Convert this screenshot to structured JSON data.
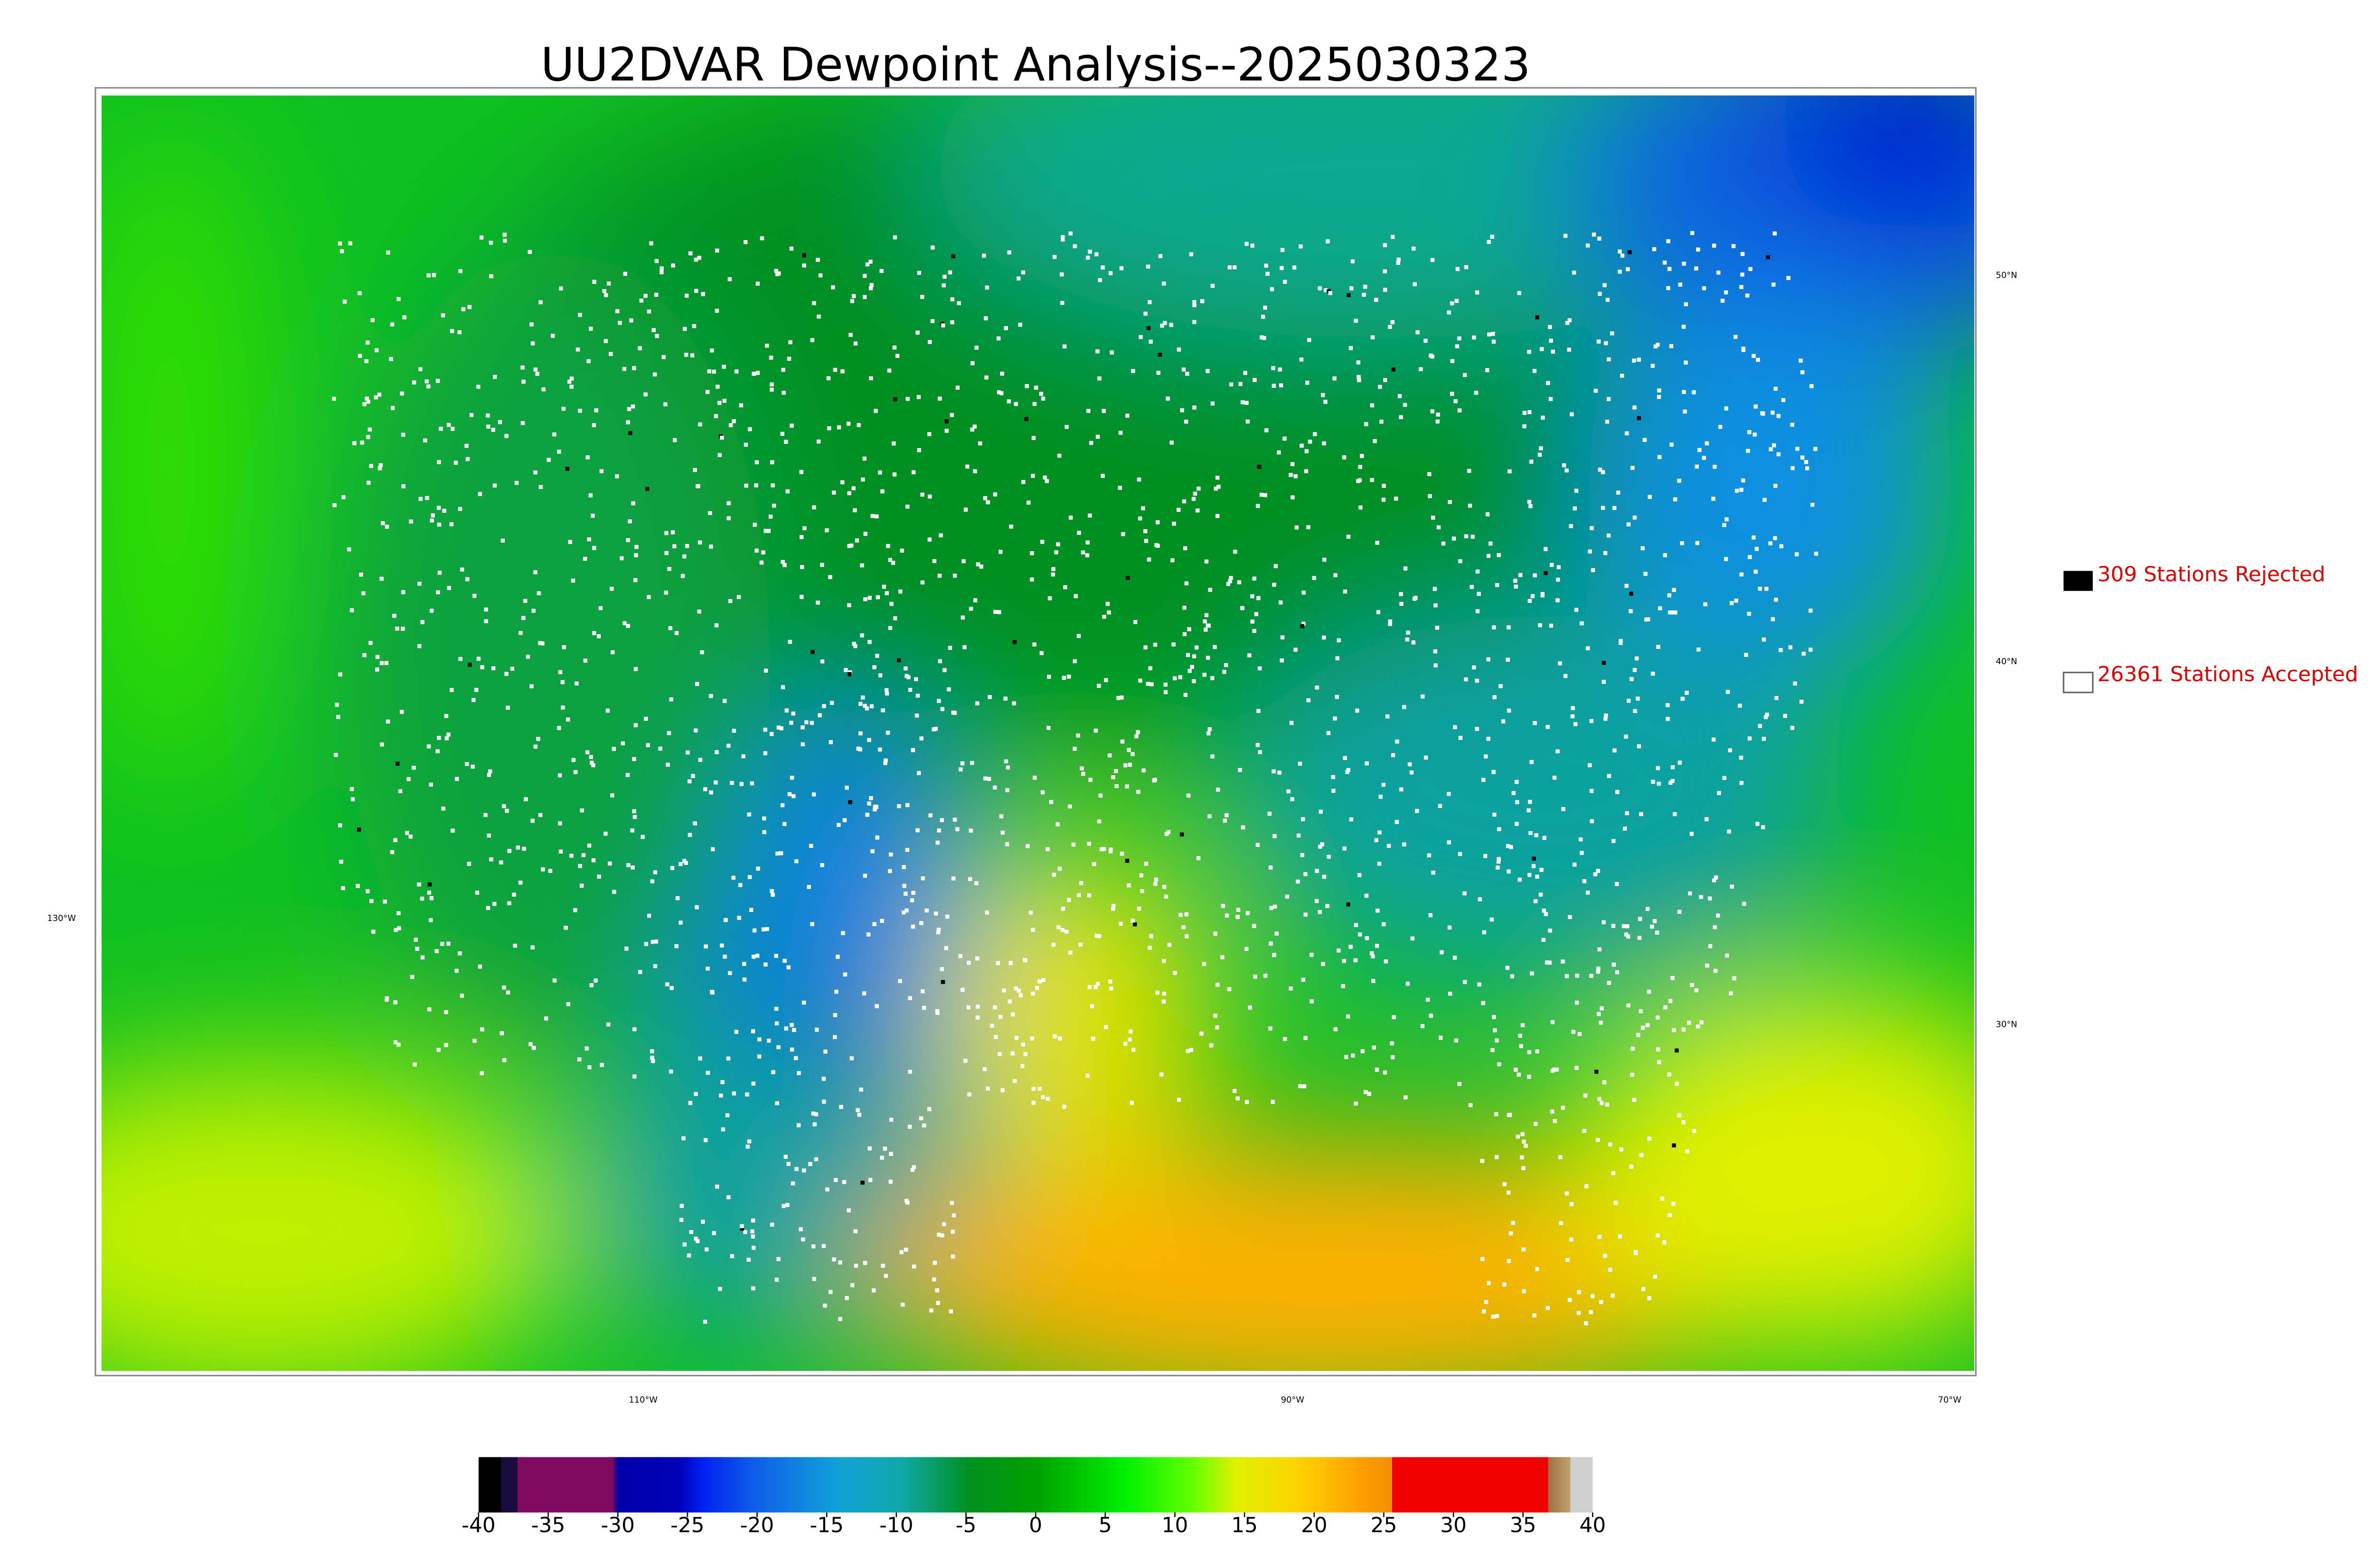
{
  "title": "UU2DVAR Dewpoint Analysis--2025030323",
  "legend": [
    {
      "label": "309 Stations Rejected"
    },
    {
      "label": "26361 Stations Accepted"
    }
  ],
  "graticule": {
    "lat_labels": [
      "50°N",
      "40°N",
      "30°N"
    ],
    "lon_labels": [
      "130°W",
      "110°W",
      "90°W",
      "70°W"
    ]
  },
  "colorbar": {
    "ticks": [
      -40,
      -35,
      -30,
      -25,
      -20,
      -15,
      -10,
      -5,
      0,
      5,
      10,
      15,
      20,
      25,
      30,
      35,
      40
    ]
  }
}
